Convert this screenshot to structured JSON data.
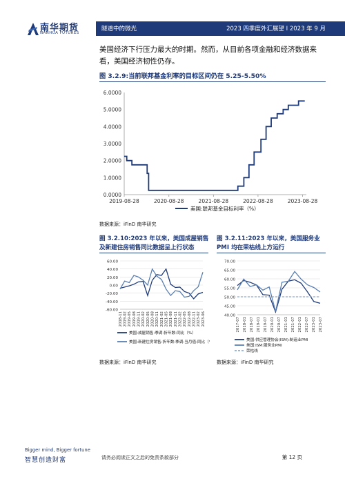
{
  "header": {
    "logo_cn": "南华期货",
    "logo_en": "NANHUA FUTURES",
    "left_text": "隧道中的微光",
    "right_text": "2023 四季度外汇展望 Ⅰ 2023 年 9 月"
  },
  "paragraph": "美国经济下行压力最大的时期。然而，从目前各项金融和经济数据来看，美国经济韧性仍存。",
  "figures": {
    "fig1": {
      "title": "图 3.2.9:当前联邦基金利率的目标区间仍在 5.25-5.50%",
      "source": "数据来源：iFinD 南华研究"
    },
    "fig2": {
      "title": "图 3.2.10:2023 年以来，美国成屋销售及新建住房销售同比数据呈上行状态",
      "source": "数据来源：iFinD 南华研究"
    },
    "fig3": {
      "title": "图 3.2.11:2023 年以来，美国服务业PMI 均在荣枯线上方运行",
      "source": "数据来源：iFinD 南华研究"
    }
  },
  "chart_data": [
    {
      "type": "line",
      "title": "",
      "x_ticks": [
        "2019-08-28",
        "2020-08-28",
        "2021-08-28",
        "2022-08-28",
        "2023-08-28"
      ],
      "y_ticks": [
        "0.0000",
        "1.0000",
        "2.0000",
        "3.0000",
        "4.0000",
        "5.0000",
        "6.0000"
      ],
      "ylim": [
        0,
        6
      ],
      "xlim": [
        "2019-08-28",
        "2023-09-28"
      ],
      "series": [
        {
          "name": "美国:联邦基金目标利率（%）",
          "color": "#1f3a78",
          "x": [
            "2019-08-28",
            "2019-09-18",
            "2019-10-30",
            "2020-03-03",
            "2020-03-15",
            "2022-03-16",
            "2022-05-04",
            "2022-06-15",
            "2022-07-27",
            "2022-09-21",
            "2022-11-02",
            "2022-12-14",
            "2023-02-01",
            "2023-03-22",
            "2023-05-03",
            "2023-07-26",
            "2023-09-15"
          ],
          "values": [
            2.25,
            2.0,
            1.75,
            1.25,
            0.25,
            0.5,
            1.0,
            1.75,
            2.5,
            3.25,
            4.0,
            4.5,
            4.75,
            5.0,
            5.25,
            5.5,
            5.5
          ]
        }
      ],
      "grid": false,
      "legend": "bottom"
    },
    {
      "type": "line",
      "title": "",
      "x_ticks": [
        "2018-11",
        "2019-02",
        "2019-05",
        "2019-08",
        "2019-11",
        "2020-02",
        "2020-05",
        "2020-08",
        "2020-11",
        "2021-02",
        "2021-05",
        "2021-08",
        "2021-11",
        "2022-02",
        "2022-05",
        "2022-08",
        "2022-11",
        "2023-02",
        "2023-06"
      ],
      "y_ticks": [
        "-60.00",
        "-40.00",
        "-20.00",
        "0.00",
        "20.00",
        "40.00",
        "60.00"
      ],
      "ylim": [
        -60,
        60
      ],
      "x": [
        "2018-11",
        "2019-02",
        "2019-05",
        "2019-08",
        "2019-11",
        "2020-02",
        "2020-05",
        "2020-08",
        "2020-11",
        "2021-02",
        "2021-05",
        "2021-08",
        "2021-11",
        "2022-02",
        "2022-05",
        "2022-08",
        "2022-11",
        "2023-02",
        "2023-06"
      ],
      "series": [
        {
          "name": "美国:成屋销售:季调:折年数:同比（%）",
          "color": "#1f3a78",
          "values": [
            -8,
            -5,
            -2,
            2,
            8,
            9,
            -26,
            12,
            26,
            24,
            40,
            2,
            -6,
            -5,
            -16,
            -20,
            -34,
            -22,
            -18
          ]
        },
        {
          "name": "美国:新建住房销售:折年数:季调:当月值:同比（%）",
          "color": "#5a7fb0",
          "values": [
            -10,
            10,
            6,
            24,
            20,
            12,
            0,
            40,
            22,
            14,
            -10,
            -26,
            -14,
            -16,
            -30,
            -28,
            -14,
            -4,
            32
          ]
        }
      ],
      "grid": true,
      "legend": "bottom"
    },
    {
      "type": "line",
      "title": "",
      "x_ticks": [
        "2017-07",
        "2018-01",
        "2018-07",
        "2019-01",
        "2019-07",
        "2020-01",
        "2020-07",
        "2021-01",
        "2021-07",
        "2022-01",
        "2022-07",
        "2023-01",
        "2023-07"
      ],
      "y_ticks": [
        "40.00",
        "45.00",
        "50.00",
        "55.00",
        "60.00",
        "65.00",
        "70.00"
      ],
      "ylim": [
        40,
        70
      ],
      "x": [
        "2017-07",
        "2018-01",
        "2018-07",
        "2019-01",
        "2019-07",
        "2020-01",
        "2020-04",
        "2020-07",
        "2021-01",
        "2021-07",
        "2022-01",
        "2022-07",
        "2023-01",
        "2023-07"
      ],
      "series": [
        {
          "name": "美国:供应管理协会(ISM):制造业PMI",
          "color": "#1f3a78",
          "values": [
            56.3,
            59.1,
            58.1,
            56.6,
            51.2,
            50.9,
            41.5,
            54.2,
            58.7,
            59.5,
            57.6,
            52.8,
            47.4,
            46.4
          ]
        },
        {
          "name": "美国:ISM:服务业PMI",
          "color": "#5a7fb0",
          "values": [
            53.9,
            59.9,
            55.7,
            56.7,
            53.7,
            55.5,
            41.8,
            58.1,
            58.7,
            64.1,
            59.9,
            56.7,
            55.2,
            52.7
          ]
        },
        {
          "name": "荣枯线",
          "color": "#8fa9cf",
          "values": [
            50,
            50,
            50,
            50,
            50,
            50,
            50,
            50,
            50,
            50,
            50,
            50,
            50,
            50
          ]
        }
      ],
      "grid": true,
      "legend": "bottom"
    }
  ],
  "footer": {
    "slogan_en": "Bigger mind, Bigger fortune",
    "slogan_cn": "智慧创造财富",
    "disclaimer": "请务必阅读正文之后的免责条款部分",
    "page": "第 12 页"
  }
}
